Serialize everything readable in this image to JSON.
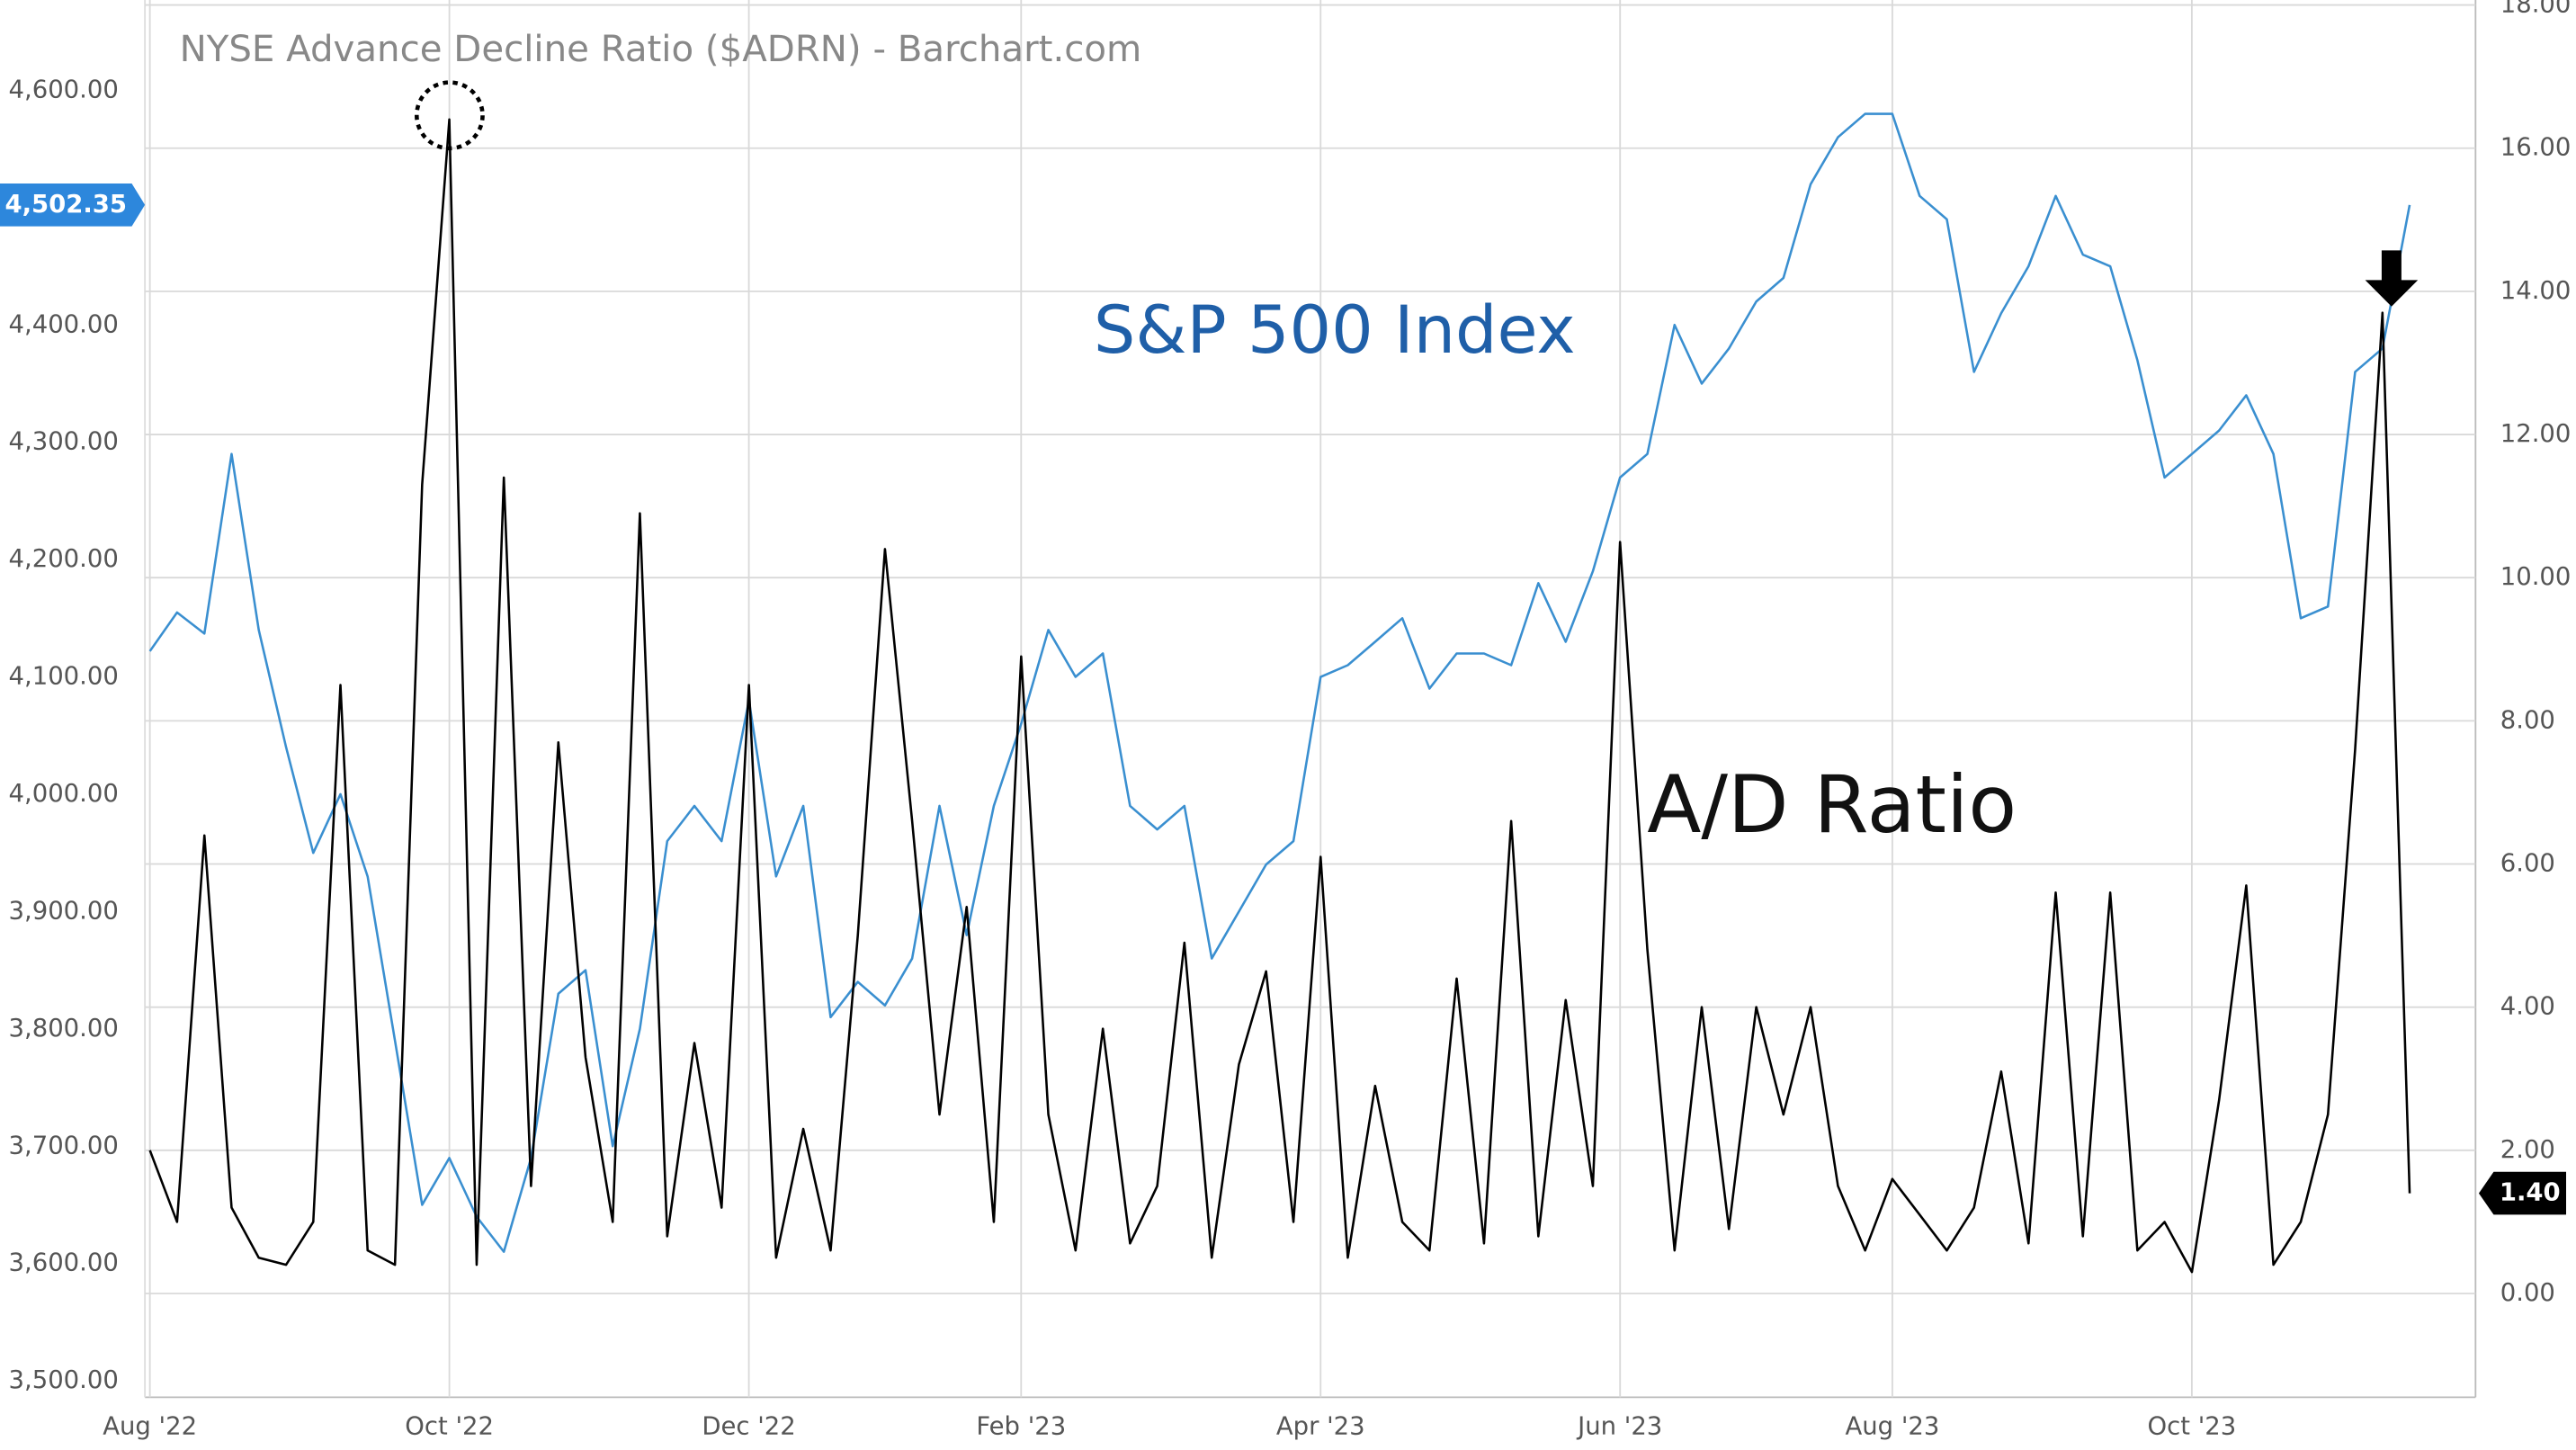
{
  "chart_data": {
    "type": "line",
    "title": "NYSE Advance Decline Ratio ($ADRN) - Barchart.com",
    "categories": [
      "Aug '22",
      null,
      null,
      null,
      null,
      null,
      null,
      null,
      null,
      null,
      null,
      "Oct '22",
      null,
      null,
      null,
      null,
      null,
      null,
      null,
      null,
      null,
      null,
      "Dec '22",
      null,
      null,
      null,
      null,
      null,
      null,
      null,
      null,
      null,
      "Feb '23",
      null,
      null,
      null,
      null,
      null,
      null,
      null,
      null,
      null,
      null,
      "Apr '23",
      null,
      null,
      null,
      null,
      null,
      null,
      null,
      null,
      null,
      null,
      "Jun '23",
      null,
      null,
      null,
      null,
      null,
      null,
      null,
      null,
      null,
      "Aug '23",
      null,
      null,
      null,
      null,
      null,
      null,
      null,
      null,
      null,
      null,
      "Oct '23",
      null,
      null,
      null,
      null,
      null,
      null,
      null,
      null
    ],
    "ylim": [
      3486,
      4677
    ],
    "yticks": [
      {
        "value": 3500,
        "label": "3,500.00"
      },
      {
        "value": 3600,
        "label": "3,600.00"
      },
      {
        "value": 3700,
        "label": "3,700.00"
      },
      {
        "value": 3800,
        "label": "3,800.00"
      },
      {
        "value": 3900,
        "label": "3,900.00"
      },
      {
        "value": 4000,
        "label": "4,000.00"
      },
      {
        "value": 4100,
        "label": "4,100.00"
      },
      {
        "value": 4200,
        "label": "4,200.00"
      },
      {
        "value": 4300,
        "label": "4,300.00"
      },
      {
        "value": 4400,
        "label": "4,400.00"
      },
      {
        "value": 4500,
        "label": "4,500.00"
      },
      {
        "value": 4600,
        "label": "4,600.00"
      }
    ],
    "y2lim": [
      -1.45,
      18.07
    ],
    "y2ticks": [
      {
        "value": 0,
        "label": "0.00"
      },
      {
        "value": 2,
        "label": "2.00"
      },
      {
        "value": 4,
        "label": "4.00"
      },
      {
        "value": 6,
        "label": "6.00"
      },
      {
        "value": 8,
        "label": "8.00"
      },
      {
        "value": 10,
        "label": "10.00"
      },
      {
        "value": 12,
        "label": "12.00"
      },
      {
        "value": 14,
        "label": "14.00"
      },
      {
        "value": 16,
        "label": "16.00"
      },
      {
        "value": 18,
        "label": "18.00"
      }
    ],
    "grid": true,
    "series": [
      {
        "name": "S&P 500 Index",
        "color": "#3a8fd0",
        "label_color": "#1f5fa8",
        "axis": "y",
        "values": [
          4122,
          4155,
          4137,
          4290,
          4140,
          4040,
          3950,
          4000,
          3930,
          3790,
          3650,
          3690,
          3640,
          3610,
          3690,
          3830,
          3850,
          3700,
          3800,
          3960,
          3990,
          3960,
          4080,
          3930,
          3990,
          3810,
          3840,
          3820,
          3860,
          3990,
          3880,
          3990,
          4060,
          4140,
          4100,
          4120,
          3990,
          3970,
          3990,
          3860,
          3900,
          3940,
          3960,
          4100,
          4110,
          4130,
          4150,
          4090,
          4120,
          4120,
          4110,
          4180,
          4130,
          4190,
          4270,
          4290,
          4400,
          4350,
          4380,
          4420,
          4440,
          4520,
          4560,
          4580,
          4580,
          4510,
          4490,
          4360,
          4410,
          4450,
          4510,
          4460,
          4450,
          4370,
          4270,
          4290,
          4310,
          4340,
          4290,
          4150,
          4160,
          4360,
          4380,
          4502.35
        ],
        "last_label": {
          "value": 4502.35,
          "label": "4,502.35"
        }
      },
      {
        "name": "A/D Ratio",
        "color": "#000000",
        "label_color": "#111111",
        "axis": "y2",
        "values": [
          2.0,
          1.0,
          6.4,
          1.2,
          0.5,
          0.4,
          1.0,
          8.5,
          0.6,
          0.4,
          11.3,
          16.4,
          0.4,
          11.4,
          1.5,
          7.7,
          3.3,
          1.0,
          10.9,
          0.8,
          3.5,
          1.2,
          8.5,
          0.5,
          2.3,
          0.6,
          5.0,
          10.4,
          6.6,
          2.5,
          5.4,
          1.0,
          8.9,
          2.5,
          0.6,
          3.7,
          0.7,
          1.5,
          4.9,
          0.5,
          3.2,
          4.5,
          1.0,
          6.1,
          0.5,
          2.9,
          1.0,
          0.6,
          4.4,
          0.7,
          6.6,
          0.8,
          4.1,
          1.5,
          10.5,
          4.8,
          0.6,
          4.0,
          0.9,
          4.0,
          2.5,
          4.0,
          1.5,
          0.6,
          1.6,
          1.1,
          0.6,
          1.2,
          3.1,
          0.7,
          5.6,
          0.8,
          5.6,
          0.6,
          1.0,
          0.3,
          2.7,
          5.7,
          0.4,
          1.0,
          2.5,
          7.6,
          13.7,
          1.4
        ],
        "last_label": {
          "value": 1.4,
          "label": "1.40"
        }
      }
    ]
  }
}
